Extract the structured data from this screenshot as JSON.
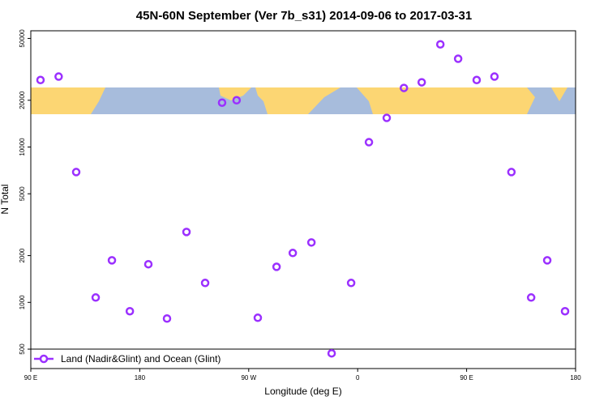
{
  "chart_data": {
    "type": "scatter",
    "title": "45N-60N September (Ver 7b_s31)   2014-09-06 to 2017-03-31",
    "x_label": "Longitude (deg E)",
    "y_label": "N Total",
    "log_y": true,
    "xlim": [
      90,
      540
    ],
    "ylim": [
      375,
      56000
    ],
    "xticks": [
      {
        "value": 90,
        "label": "90 E"
      },
      180,
      {
        "value": 270,
        "label": "90 W"
      },
      {
        "value": 360,
        "label": "0"
      },
      {
        "value": 450,
        "label": "90 E"
      },
      {
        "value": 540,
        "label": "180"
      }
    ],
    "yticks": [
      500,
      1000,
      2000,
      5000,
      10000,
      20000,
      50000
    ],
    "series": [
      {
        "name": "Land (Nadir&Glint) and Ocean (Glint)",
        "color": "#9b30ff",
        "x": [
          98,
          113,
          127.5,
          143.6,
          157,
          171.8,
          187.1,
          202.5,
          218.6,
          234,
          248,
          260,
          277.5,
          293,
          306.4,
          321.8,
          338.5,
          354.6,
          369.3,
          384,
          398.2,
          412.9,
          428.3,
          443,
          458.3,
          473,
          487,
          503.3,
          516.6,
          531.3
        ],
        "values": [
          27000,
          28400,
          6900,
          1075,
          1865,
          877,
          1760,
          787,
          2840,
          1334,
          19300,
          20000,
          796,
          1694,
          2080,
          2430,
          470,
          1334,
          10740,
          15400,
          24000,
          26100,
          45800,
          37000,
          27000,
          28400,
          6900,
          1075,
          1865,
          877
        ]
      }
    ]
  }
}
